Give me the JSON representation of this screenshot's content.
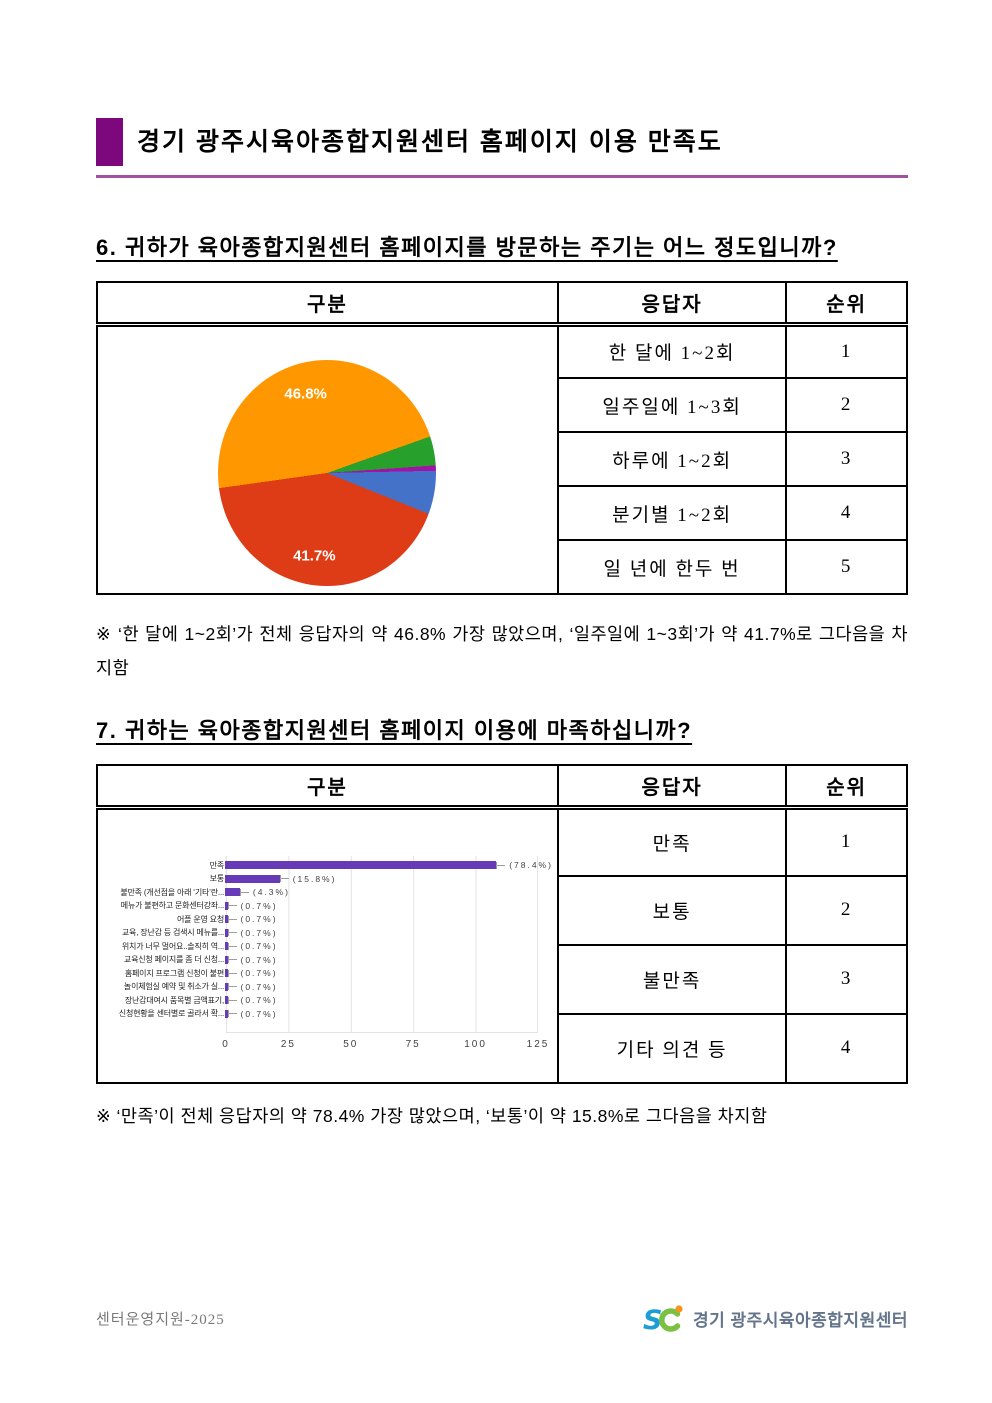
{
  "header": {
    "title": "경기 광주시육아종합지원센터 홈페이지 이용 만족도"
  },
  "q6": {
    "question": "6. 귀하가 육아종합지원센터 홈페이지를 방문하는 주기는 어느 정도입니까?",
    "table": {
      "headers": [
        "구분",
        "응답자",
        "순위"
      ],
      "rows": [
        {
          "label": "한 달에 1~2회",
          "rank": "1"
        },
        {
          "label": "일주일에 1~3회",
          "rank": "2"
        },
        {
          "label": "하루에 1~2회",
          "rank": "3"
        },
        {
          "label": "분기별 1~2회",
          "rank": "4"
        },
        {
          "label": "일 년에 한두 번",
          "rank": "5"
        }
      ]
    },
    "note": "※ ‘한 달에 1~2회’가 전체 응답자의 약 46.8% 가장 많았으며, ‘일주일에 1~3회’가 약 41.7%로 그다음을 차지함"
  },
  "q7": {
    "question": "7. 귀하는 육아종합지원센터 홈페이지 이용에 마족하십니까?",
    "table": {
      "headers": [
        "구분",
        "응답자",
        "순위"
      ],
      "rows": [
        {
          "label": "만족",
          "rank": "1"
        },
        {
          "label": "보통",
          "rank": "2"
        },
        {
          "label": "불만족",
          "rank": "3"
        },
        {
          "label": "기타 의견 등",
          "rank": "4"
        }
      ]
    },
    "note": "※ ‘만족’이 전체 응답자의 약 78.4% 가장 많았으며, ‘보통’이 약 15.8%로 그다음을 차지함"
  },
  "chart_data": [
    {
      "id": "visit-frequency-pie",
      "type": "pie",
      "start_angle_deg": -98,
      "slices": [
        {
          "label": "46.8%",
          "value": 46.8,
          "color": "#ff9800",
          "labeled": true
        },
        {
          "label": "",
          "value": 4.3,
          "color": "#28a02c",
          "labeled": false
        },
        {
          "label": "",
          "value": 0.8,
          "color": "#a213a5",
          "labeled": false
        },
        {
          "label": "",
          "value": 6.4,
          "color": "#4472c9",
          "labeled": false
        },
        {
          "label": "41.7%",
          "value": 41.7,
          "color": "#dd3c16",
          "labeled": true
        }
      ],
      "label_color": "#ffffff"
    },
    {
      "id": "satisfaction-bar",
      "type": "bar",
      "orientation": "horizontal",
      "categories": [
        "만족",
        "보통",
        "불만족 (개선점을 아래 ‘기타’란...",
        "메뉴가 불편하고 문화센터강좌...",
        "어플 운영 요청",
        "교육, 장난감 등 검색시 메뉴를...",
        "위치가 너무 멀어요..솔직히 역...",
        "교육신청 페이지를 좀 더 신청...",
        "홈페이지 프로그램 신청이 불편",
        "놀이체험실 예약 및 취소가 실...",
        "장난감대여시 품목별 금액표기,",
        "신청현황을 센터별로 골라서 확..."
      ],
      "values": [
        109,
        22,
        6,
        1,
        1,
        1,
        1,
        1,
        1,
        1,
        1,
        1
      ],
      "value_labels": [
        "(78.4%)",
        "(15.8%)",
        "(4.3%)",
        "(0.7%)",
        "(0.7%)",
        "(0.7%)",
        "(0.7%)",
        "(0.7%)",
        "(0.7%)",
        "(0.7%)",
        "(0.7%)",
        "(0.7%)"
      ],
      "xlim": [
        0,
        125
      ],
      "x_ticks": [
        "0",
        "25",
        "50",
        "75",
        "100",
        "125"
      ],
      "bar_color": "#673ab7",
      "grid": true,
      "legend": "none"
    }
  ],
  "footer": {
    "doc_code": "센터운영지원-2025",
    "org_name": "경기 광주시육아종합지원센터"
  }
}
